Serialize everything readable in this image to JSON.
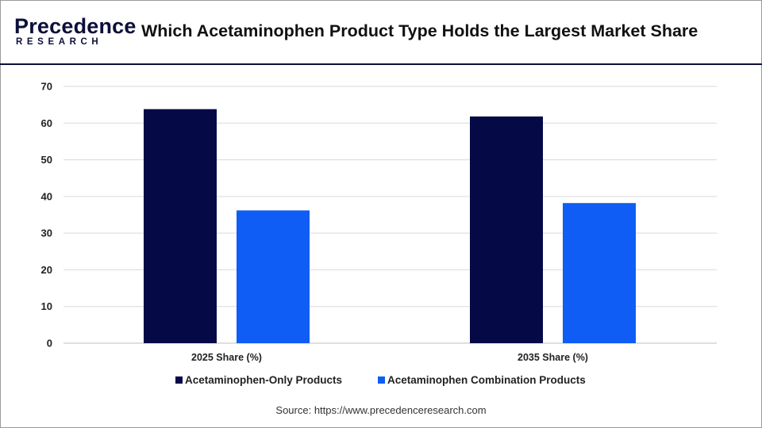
{
  "header": {
    "logo_main": "Precedence",
    "logo_sub": "RESEARCH",
    "title": "Which Acetaminophen Product Type Holds the Largest Market Share"
  },
  "chart_data": {
    "type": "bar",
    "categories": [
      "2025 Share (%)",
      "2035 Share (%)"
    ],
    "series": [
      {
        "name": "Acetaminophen-Only Products",
        "values": [
          63.8,
          61.8
        ],
        "color": "#050a47"
      },
      {
        "name": "Acetaminophen Combination Products",
        "values": [
          36.2,
          38.2
        ],
        "color": "#0f5df5"
      }
    ],
    "yticks": [
      0,
      10,
      20,
      30,
      40,
      50,
      60,
      70
    ],
    "ylim": [
      0,
      70
    ],
    "grid": true,
    "legend_position": "bottom"
  },
  "footer": {
    "source": "Source: https://www.precedenceresearch.com"
  },
  "colors": {
    "brand": "#0b0f3a",
    "grid": "#d9d9d9"
  }
}
